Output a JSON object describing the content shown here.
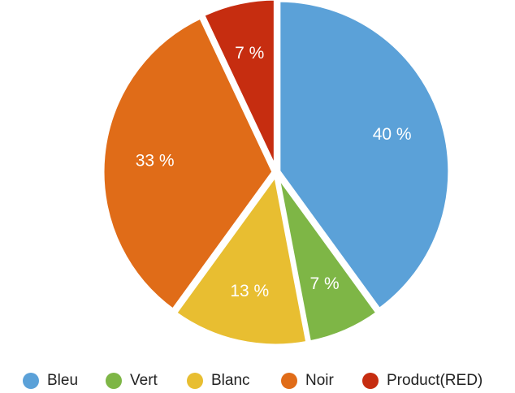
{
  "chart_data": {
    "type": "pie",
    "title": "",
    "legend_placement": "bottom",
    "start_angle_deg": 0,
    "direction": "clockwise",
    "slices": [
      {
        "name": "Bleu",
        "value": 40,
        "label": "40 %",
        "color": "#5BA1D8"
      },
      {
        "name": "Vert",
        "value": 7,
        "label": "7 %",
        "color": "#7EB646"
      },
      {
        "name": "Blanc",
        "value": 13,
        "label": "13 %",
        "color": "#E8BE31"
      },
      {
        "name": "Noir",
        "value": 33,
        "label": "33 %",
        "color": "#E06C18"
      },
      {
        "name": "Product(RED)",
        "value": 7,
        "label": "7 %",
        "color": "#C62D10"
      }
    ]
  }
}
